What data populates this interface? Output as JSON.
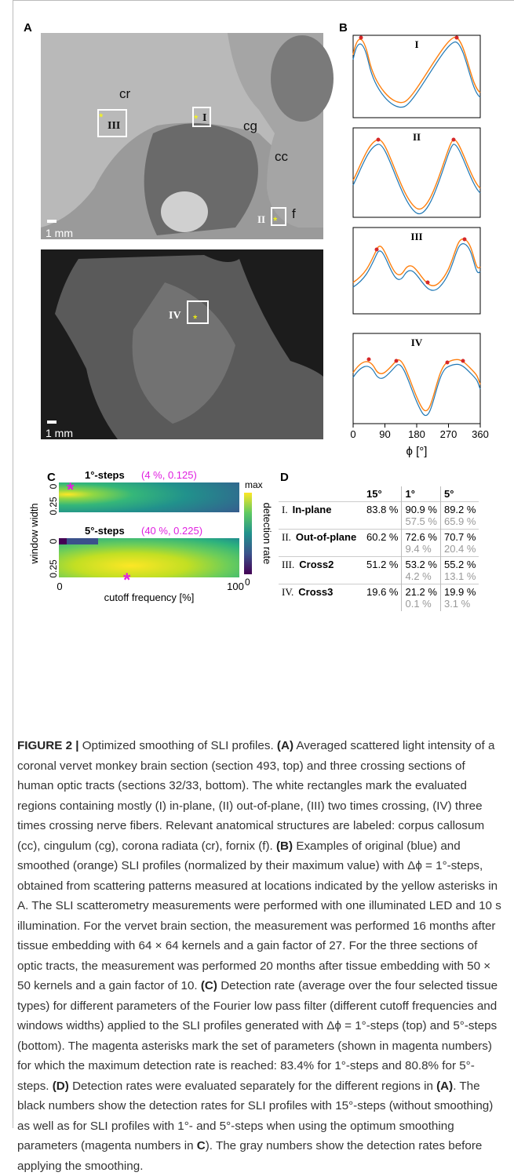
{
  "panels": {
    "A": "A",
    "B": "B",
    "C": "C",
    "D": "D"
  },
  "image_labels": {
    "cr": "cr",
    "cg": "cg",
    "cc": "cc",
    "f": "f",
    "I": "I",
    "II": "II",
    "III": "III",
    "IV": "IV",
    "scale_top": "1 mm",
    "scale_bottom": "1 mm"
  },
  "profiles": {
    "labels": [
      "I",
      "II",
      "III",
      "IV"
    ],
    "xticks": [
      "0",
      "90",
      "180",
      "270",
      "360"
    ],
    "xlabel": "ϕ [°]"
  },
  "heatmaps": {
    "top_title": "1°-steps",
    "top_params": "(4 %, 0.125)",
    "bottom_title": "5°-steps",
    "bottom_params": "(40 %, 0.225)",
    "yticks": [
      "0",
      "0.25"
    ],
    "ylabel": "window width",
    "xticks": [
      "0",
      "100"
    ],
    "xlabel": "cutoff frequency [%]",
    "colorbar_max": "max",
    "colorbar_label": "detection rate",
    "colorbar_min": "0"
  },
  "table": {
    "header": [
      "15°",
      "1°",
      "5°"
    ],
    "rows": [
      {
        "num": "I.",
        "name": "In-plane",
        "v15": "83.8 %",
        "v1": "90.9 %",
        "v1_before": "57.5 %",
        "v5": "89.2 %",
        "v5_before": "65.9 %"
      },
      {
        "num": "II.",
        "name": "Out-of-plane",
        "v15": "60.2 %",
        "v1": "72.6 %",
        "v1_before": "9.4 %",
        "v5": "70.7 %",
        "v5_before": "20.4 %"
      },
      {
        "num": "III.",
        "name": "Cross2",
        "v15": "51.2 %",
        "v1": "53.2 %",
        "v1_before": "4.2 %",
        "v5": "55.2 %",
        "v5_before": "13.1 %"
      },
      {
        "num": "IV.",
        "name": "Cross3",
        "v15": "19.6 %",
        "v1": "21.2 %",
        "v1_before": "0.1 %",
        "v5": "19.9 %",
        "v5_before": "3.1 %"
      }
    ]
  },
  "caption": [
    {
      "text": "FIGURE 2 |",
      "bold": true
    },
    {
      "text": " Optimized smoothing of SLI profiles. "
    },
    {
      "text": "(A)",
      "bold": true
    },
    {
      "text": " Averaged scattered light intensity of a coronal vervet monkey brain section (section 493, top) and three crossing sections of human optic tracts (sections 32/33, bottom). The white rectangles mark the evaluated regions containing mostly (I) in-plane, (II) out-of-plane, (III) two times crossing, (IV) three times crossing nerve fibers. Relevant anatomical structures are labeled: corpus callosum (cc), cingulum (cg), corona radiata (cr), fornix (f). "
    },
    {
      "text": "(B)",
      "bold": true
    },
    {
      "text": " Examples of original (blue) and smoothed (orange) SLI profiles (normalized by their maximum value) with Δϕ = 1°-steps, obtained from scattering patterns measured at locations indicated by the yellow asterisks in A. The SLI scatterometry measurements were performed with one illuminated LED and 10 s illumination. For the vervet brain section, the measurement was performed 16 months after tissue embedding with 64 × 64 kernels and a gain factor of 27. For the three sections of optic tracts, the measurement was performed 20 months after tissue embedding with 50 × 50 kernels and a gain factor of 10. "
    },
    {
      "text": "(C)",
      "bold": true
    },
    {
      "text": " Detection rate (average over the four selected tissue types) for different parameters of the Fourier low pass filter (different cutoff frequencies and windows widths) applied to the SLI profiles generated with Δϕ = 1°-steps (top) and 5°-steps (bottom). The magenta asterisks mark the set of parameters (shown in magenta numbers) for which the maximum detection rate is reached: 83.4% for 1°-steps and 80.8% for 5°-steps. "
    },
    {
      "text": "(D)",
      "bold": true
    },
    {
      "text": " Detection rates were evaluated separately for the different regions in "
    },
    {
      "text": "(A)",
      "bold": true
    },
    {
      "text": ". The black numbers show the detection rates for SLI profiles with 15°-steps (without smoothing) as well as for SLI profiles with 1°- and 5°-steps when using the optimum smoothing parameters (magenta numbers in "
    },
    {
      "text": "C",
      "bold": true
    },
    {
      "text": "). The gray numbers show the detection rates before applying the smoothing."
    }
  ]
}
